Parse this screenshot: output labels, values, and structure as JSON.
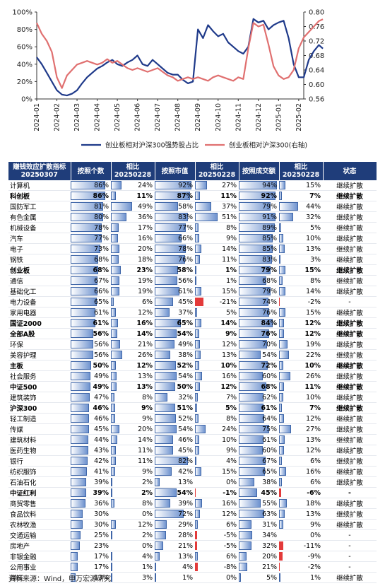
{
  "chart_data": {
    "type": "line",
    "x_ticks": [
      "2024-01",
      "2024-02",
      "2024-03",
      "2024-04",
      "2024-05",
      "2024-06",
      "2024-07",
      "2024-08",
      "2024-09",
      "2024-10",
      "2024-11",
      "2024-12",
      "2025-01",
      "2025-02"
    ],
    "left_axis_ticks": [
      "100%",
      "80%",
      "60%",
      "40%",
      "20%",
      "0%"
    ],
    "right_axis_ticks": [
      "0.80",
      "0.76",
      "0.72",
      "0.68",
      "0.64",
      "0.60",
      "0.56"
    ],
    "ylim_left": [
      0,
      100
    ],
    "ylim_right": [
      0.56,
      0.8
    ],
    "series": [
      {
        "name": "创业板相对沪深300强势股占比",
        "color": "#1f3a8a",
        "axis": "left",
        "x": [
          0,
          0.25,
          0.5,
          0.75,
          1,
          1.25,
          1.5,
          1.75,
          2,
          2.25,
          2.5,
          2.75,
          3,
          3.25,
          3.5,
          3.75,
          4,
          4.25,
          4.5,
          4.75,
          5,
          5.25,
          5.5,
          5.75,
          6,
          6.25,
          6.5,
          6.75,
          7,
          7.25,
          7.5,
          7.75,
          8,
          8.25,
          8.5,
          8.75,
          9,
          9.25,
          9.5,
          9.75,
          10,
          10.25,
          10.5,
          10.75,
          11,
          11.25,
          11.5,
          11.75,
          12,
          12.25,
          12.5,
          12.75,
          13,
          13.25,
          13.5,
          13.75,
          14,
          14.2
        ],
        "values": [
          48,
          40,
          30,
          20,
          10,
          5,
          4,
          6,
          10,
          18,
          25,
          30,
          35,
          38,
          42,
          45,
          40,
          38,
          42,
          45,
          50,
          40,
          38,
          45,
          40,
          35,
          30,
          28,
          28,
          22,
          18,
          20,
          80,
          70,
          85,
          78,
          72,
          75,
          65,
          60,
          55,
          52,
          60,
          92,
          88,
          90,
          80,
          85,
          88,
          90,
          70,
          40,
          25,
          25,
          45,
          55,
          62,
          58
        ]
      },
      {
        "name": "创业板相对沪深300(右轴)",
        "color": "#e07070",
        "axis": "right",
        "x": [
          0,
          0.25,
          0.5,
          0.75,
          1,
          1.25,
          1.5,
          1.75,
          2,
          2.25,
          2.5,
          2.75,
          3,
          3.25,
          3.5,
          3.75,
          4,
          4.25,
          4.5,
          4.75,
          5,
          5.25,
          5.5,
          5.75,
          6,
          6.25,
          6.5,
          6.75,
          7,
          7.25,
          7.5,
          7.75,
          8,
          8.25,
          8.5,
          8.75,
          9,
          9.25,
          9.5,
          9.75,
          10,
          10.25,
          10.5,
          10.75,
          11,
          11.25,
          11.5,
          11.75,
          12,
          12.25,
          12.5,
          12.75,
          13,
          13.25,
          13.5,
          13.75,
          14,
          14.2
        ],
        "values": [
          0.77,
          0.74,
          0.72,
          0.69,
          0.62,
          0.59,
          0.625,
          0.64,
          0.655,
          0.66,
          0.665,
          0.66,
          0.655,
          0.66,
          0.67,
          0.66,
          0.665,
          0.655,
          0.645,
          0.64,
          0.645,
          0.64,
          0.635,
          0.64,
          0.645,
          0.635,
          0.625,
          0.62,
          0.61,
          0.615,
          0.62,
          0.615,
          0.62,
          0.615,
          0.61,
          0.62,
          0.625,
          0.62,
          0.615,
          0.61,
          0.62,
          0.615,
          0.7,
          0.77,
          0.76,
          0.765,
          0.71,
          0.65,
          0.625,
          0.615,
          0.62,
          0.64,
          0.7,
          0.73,
          0.745,
          0.76,
          0.775,
          0.78
        ]
      }
    ]
  },
  "table": {
    "headers": [
      "赚钱效应扩散指标\n20250307",
      "按照个数",
      "相比\n20250228",
      "按照市值",
      "相比\n20250228",
      "按照成交额",
      "相比\n20250228",
      "状态"
    ],
    "rows": [
      {
        "name": "计算机",
        "v": [
          "86%",
          "24%",
          "92%",
          "27%",
          "94%",
          "15%"
        ],
        "n": [
          86,
          24,
          92,
          27,
          94,
          15
        ],
        "status": "继续扩散",
        "bold": false
      },
      {
        "name": "科创板",
        "v": [
          "86%",
          "11%",
          "87%",
          "11%",
          "92%",
          "7%"
        ],
        "n": [
          86,
          11,
          87,
          11,
          92,
          7
        ],
        "status": "继续扩散",
        "bold": true
      },
      {
        "name": "国防军工",
        "v": [
          "81%",
          "49%",
          "58%",
          "37%",
          "79%",
          "44%"
        ],
        "n": [
          81,
          49,
          58,
          37,
          79,
          44
        ],
        "status": "继续扩散",
        "bold": false
      },
      {
        "name": "有色金属",
        "v": [
          "80%",
          "36%",
          "83%",
          "51%",
          "91%",
          "32%"
        ],
        "n": [
          80,
          36,
          83,
          51,
          91,
          32
        ],
        "status": "继续扩散",
        "bold": false
      },
      {
        "name": "机械设备",
        "v": [
          "78%",
          "17%",
          "77%",
          "8%",
          "89%",
          "5%"
        ],
        "n": [
          78,
          17,
          77,
          8,
          89,
          5
        ],
        "status": "继续扩散",
        "bold": false
      },
      {
        "name": "汽车",
        "v": [
          "77%",
          "16%",
          "66%",
          "9%",
          "85%",
          "10%"
        ],
        "n": [
          77,
          16,
          66,
          9,
          85,
          10
        ],
        "status": "继续扩散",
        "bold": false
      },
      {
        "name": "电子",
        "v": [
          "73%",
          "20%",
          "78%",
          "14%",
          "85%",
          "13%"
        ],
        "n": [
          73,
          20,
          78,
          14,
          85,
          13
        ],
        "status": "继续扩散",
        "bold": false
      },
      {
        "name": "钢铁",
        "v": [
          "68%",
          "18%",
          "76%",
          "11%",
          "83%",
          "3%"
        ],
        "n": [
          68,
          18,
          76,
          11,
          83,
          3
        ],
        "status": "继续扩散",
        "bold": false
      },
      {
        "name": "创业板",
        "v": [
          "68%",
          "23%",
          "58%",
          "1%",
          "79%",
          "15%"
        ],
        "n": [
          68,
          23,
          58,
          1,
          79,
          15
        ],
        "status": "继续扩散",
        "bold": true
      },
      {
        "name": "通信",
        "v": [
          "67%",
          "19%",
          "56%",
          "1%",
          "68%",
          "8%"
        ],
        "n": [
          67,
          19,
          56,
          1,
          68,
          8
        ],
        "status": "继续扩散",
        "bold": false
      },
      {
        "name": "基础化工",
        "v": [
          "66%",
          "19%",
          "61%",
          "15%",
          "79%",
          "14%"
        ],
        "n": [
          66,
          19,
          61,
          15,
          79,
          14
        ],
        "status": "继续扩散",
        "bold": false
      },
      {
        "name": "电力设备",
        "v": [
          "65%",
          "6%",
          "45%",
          "-21%",
          "74%",
          "-2%"
        ],
        "n": [
          65,
          6,
          45,
          -21,
          74,
          -2
        ],
        "status": "-",
        "bold": false
      },
      {
        "name": "家用电器",
        "v": [
          "61%",
          "12%",
          "37%",
          "5%",
          "76%",
          "15%"
        ],
        "n": [
          61,
          12,
          37,
          5,
          76,
          15
        ],
        "status": "继续扩散",
        "bold": false
      },
      {
        "name": "国证2000",
        "v": [
          "61%",
          "16%",
          "65%",
          "14%",
          "84%",
          "12%"
        ],
        "n": [
          61,
          16,
          65,
          14,
          84,
          12
        ],
        "status": "继续扩散",
        "bold": true
      },
      {
        "name": "全部A股",
        "v": [
          "56%",
          "14%",
          "54%",
          "9%",
          "76%",
          "12%"
        ],
        "n": [
          56,
          14,
          54,
          9,
          76,
          12
        ],
        "status": "继续扩散",
        "bold": true
      },
      {
        "name": "环保",
        "v": [
          "56%",
          "21%",
          "49%",
          "12%",
          "70%",
          "19%"
        ],
        "n": [
          56,
          21,
          49,
          12,
          70,
          19
        ],
        "status": "继续扩散",
        "bold": false
      },
      {
        "name": "美容护理",
        "v": [
          "56%",
          "26%",
          "38%",
          "13%",
          "54%",
          "22%"
        ],
        "n": [
          56,
          26,
          38,
          13,
          54,
          22
        ],
        "status": "继续扩散",
        "bold": false
      },
      {
        "name": "主板",
        "v": [
          "50%",
          "12%",
          "52%",
          "10%",
          "72%",
          "10%"
        ],
        "n": [
          50,
          12,
          52,
          10,
          72,
          10
        ],
        "status": "继续扩散",
        "bold": true
      },
      {
        "name": "社会服务",
        "v": [
          "49%",
          "13%",
          "54%",
          "16%",
          "60%",
          "26%"
        ],
        "n": [
          49,
          13,
          54,
          16,
          60,
          26
        ],
        "status": "继续扩散",
        "bold": false
      },
      {
        "name": "中证500",
        "v": [
          "49%",
          "13%",
          "50%",
          "12%",
          "68%",
          "11%"
        ],
        "n": [
          49,
          13,
          50,
          12,
          68,
          11
        ],
        "status": "继续扩散",
        "bold": true
      },
      {
        "name": "建筑装饰",
        "v": [
          "47%",
          "8%",
          "32%",
          "7%",
          "62%",
          "10%"
        ],
        "n": [
          47,
          8,
          32,
          7,
          62,
          10
        ],
        "status": "继续扩散",
        "bold": false
      },
      {
        "name": "沪深300",
        "v": [
          "46%",
          "9%",
          "51%",
          "5%",
          "61%",
          "7%"
        ],
        "n": [
          46,
          9,
          51,
          5,
          61,
          7
        ],
        "status": "继续扩散",
        "bold": true
      },
      {
        "name": "轻工制造",
        "v": [
          "46%",
          "9%",
          "52%",
          "8%",
          "64%",
          "12%"
        ],
        "n": [
          46,
          9,
          52,
          8,
          64,
          12
        ],
        "status": "继续扩散",
        "bold": false
      },
      {
        "name": "传媒",
        "v": [
          "45%",
          "20%",
          "54%",
          "24%",
          "75%",
          "27%"
        ],
        "n": [
          45,
          20,
          54,
          24,
          75,
          27
        ],
        "status": "继续扩散",
        "bold": false
      },
      {
        "name": "建筑材料",
        "v": [
          "44%",
          "14%",
          "46%",
          "10%",
          "61%",
          "13%"
        ],
        "n": [
          44,
          14,
          46,
          10,
          61,
          13
        ],
        "status": "继续扩散",
        "bold": false
      },
      {
        "name": "医药生物",
        "v": [
          "43%",
          "11%",
          "45%",
          "9%",
          "60%",
          "12%"
        ],
        "n": [
          43,
          11,
          45,
          9,
          60,
          12
        ],
        "status": "继续扩散",
        "bold": false
      },
      {
        "name": "银行",
        "v": [
          "42%",
          "11%",
          "82%",
          "4%",
          "67%",
          "6%"
        ],
        "n": [
          42,
          11,
          82,
          4,
          67,
          6
        ],
        "status": "继续扩散",
        "bold": false
      },
      {
        "name": "纺织服饰",
        "v": [
          "41%",
          "9%",
          "42%",
          "15%",
          "65%",
          "16%"
        ],
        "n": [
          41,
          9,
          42,
          15,
          65,
          16
        ],
        "status": "继续扩散",
        "bold": false
      },
      {
        "name": "石油石化",
        "v": [
          "39%",
          "2%",
          "13%",
          "0%",
          "38%",
          "6%"
        ],
        "n": [
          39,
          2,
          13,
          0,
          38,
          6
        ],
        "status": "继续扩散",
        "bold": false
      },
      {
        "name": "中证红利",
        "v": [
          "39%",
          "2%",
          "54%",
          "-1%",
          "45%",
          "-6%"
        ],
        "n": [
          39,
          2,
          54,
          -1,
          45,
          -6
        ],
        "status": "-",
        "bold": true
      },
      {
        "name": "商贸零售",
        "v": [
          "36%",
          "8%",
          "39%",
          "16%",
          "55%",
          "18%"
        ],
        "n": [
          36,
          8,
          39,
          16,
          55,
          18
        ],
        "status": "继续扩散",
        "bold": false
      },
      {
        "name": "食品饮料",
        "v": [
          "30%",
          "0%",
          "72%",
          "12%",
          "63%",
          "13%"
        ],
        "n": [
          30,
          0,
          72,
          12,
          63,
          13
        ],
        "status": "继续扩散",
        "bold": false
      },
      {
        "name": "农林牧渔",
        "v": [
          "30%",
          "12%",
          "29%",
          "6%",
          "31%",
          "9%"
        ],
        "n": [
          30,
          12,
          29,
          6,
          31,
          9
        ],
        "status": "继续扩散",
        "bold": false
      },
      {
        "name": "交通运输",
        "v": [
          "25%",
          "2%",
          "28%",
          "-5%",
          "34%",
          "0%"
        ],
        "n": [
          25,
          2,
          28,
          -5,
          34,
          0
        ],
        "status": "-",
        "bold": false
      },
      {
        "name": "房地产",
        "v": [
          "23%",
          "0%",
          "21%",
          "-5%",
          "32%",
          "-11%"
        ],
        "n": [
          23,
          0,
          21,
          -5,
          32,
          -11
        ],
        "status": "-",
        "bold": false
      },
      {
        "name": "非银金融",
        "v": [
          "17%",
          "4%",
          "13%",
          "6%",
          "20%",
          "-9%"
        ],
        "n": [
          17,
          4,
          13,
          6,
          20,
          -9
        ],
        "status": "-",
        "bold": false
      },
      {
        "name": "公用事业",
        "v": [
          "17%",
          "1%",
          "4%",
          "-8%",
          "21%",
          "-2%"
        ],
        "n": [
          17,
          1,
          4,
          -8,
          21,
          -2
        ],
        "status": "-",
        "bold": false
      },
      {
        "name": "煤炭",
        "v": [
          "13%",
          "3%",
          "1%",
          "0%",
          "5%",
          "1%"
        ],
        "n": [
          13,
          3,
          1,
          0,
          5,
          1
        ],
        "status": "继续扩散",
        "bold": false
      }
    ]
  },
  "source": "资料来源：Wind，申万宏源研究"
}
